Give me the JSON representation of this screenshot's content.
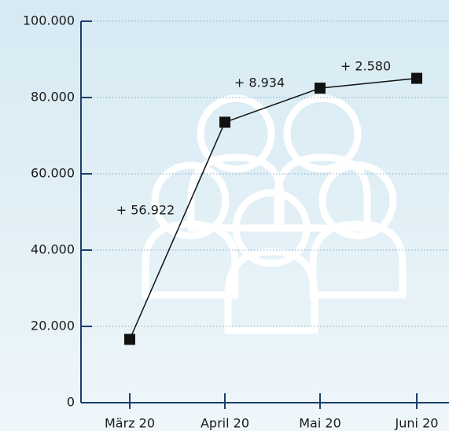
{
  "chart_data": {
    "type": "line",
    "categories": [
      "März 20",
      "April 20",
      "Mai 20",
      "Juni 20"
    ],
    "series": [
      {
        "name": "Mitglieder",
        "color": "#111111",
        "values": [
          16600,
          73522,
          82456,
          85036
        ]
      }
    ],
    "ylim": [
      0,
      100000
    ],
    "yticks": [
      0,
      {
        "value": 20000,
        "label": "20.000"
      },
      {
        "value": 40000,
        "label": "40.000"
      },
      {
        "value": 60000,
        "label": "60.000"
      },
      {
        "value": 80000,
        "label": "80.000"
      },
      {
        "value": 100000,
        "label": "100.000"
      }
    ],
    "grid": true,
    "annotations": [
      {
        "text": "+ 56.922"
      },
      {
        "text": "+ 8.934"
      },
      {
        "text": "+ 2.580"
      }
    ]
  }
}
